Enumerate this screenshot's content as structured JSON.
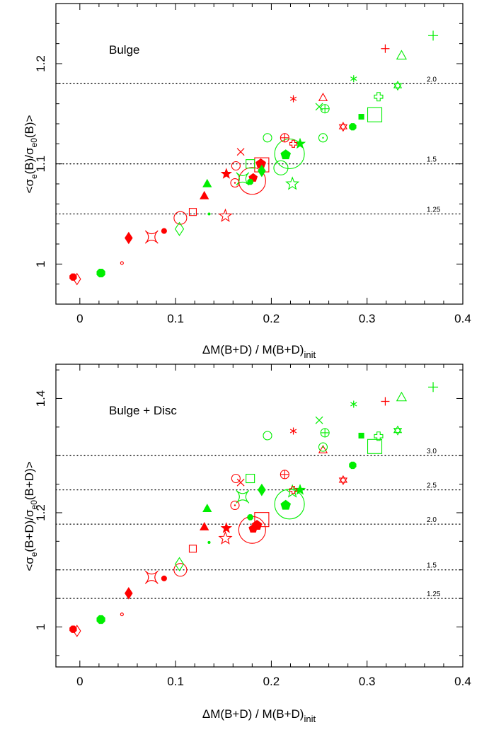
{
  "colors": {
    "red": "#ff0000",
    "green": "#00ee00",
    "axis": "#000000"
  },
  "chart_data": [
    {
      "type": "scatter",
      "panel": "top",
      "annotation": "Bulge",
      "xlabel_main": "ΔM(B+D) / M(B+D)",
      "xlabel_sub": "init",
      "ylabel_main": "<σ",
      "ylabel_sub1": "e",
      "ylabel_mid": "(B)/σ",
      "ylabel_sub2": "e0",
      "ylabel_end": "(B)>",
      "xlim": [
        -0.025,
        0.4
      ],
      "ylim": [
        0.96,
        1.26
      ],
      "xticks": [
        0,
        0.1,
        0.2,
        0.3,
        0.4
      ],
      "xtick_labels": [
        "0",
        "0.1",
        "0.2",
        "0.3",
        "0.4"
      ],
      "yticks": [
        1,
        1.1,
        1.2
      ],
      "ytick_labels": [
        "1",
        "1.1",
        "1.2"
      ],
      "reference_lines": [
        {
          "y": 1.18,
          "label": "2.0"
        },
        {
          "y": 1.1,
          "label": "1.5"
        },
        {
          "y": 1.05,
          "label": "1.25"
        }
      ],
      "points": [
        {
          "x": -0.007,
          "y": 0.987,
          "color": "red",
          "marker": "octagon",
          "filled": true,
          "size": 5
        },
        {
          "x": -0.003,
          "y": 0.985,
          "color": "red",
          "marker": "diamond",
          "filled": false,
          "size": 6
        },
        {
          "x": 0.022,
          "y": 0.991,
          "color": "green",
          "marker": "octagon",
          "filled": true,
          "size": 6
        },
        {
          "x": 0.044,
          "y": 1.001,
          "color": "red",
          "marker": "circle",
          "filled": false,
          "size": 2
        },
        {
          "x": 0.051,
          "y": 1.026,
          "color": "red",
          "marker": "diamond",
          "filled": true,
          "size": 6
        },
        {
          "x": 0.075,
          "y": 1.027,
          "color": "red",
          "marker": "astroid",
          "filled": false,
          "size": 9
        },
        {
          "x": 0.088,
          "y": 1.033,
          "color": "red",
          "marker": "circle",
          "filled": true,
          "size": 3.5
        },
        {
          "x": 0.104,
          "y": 1.035,
          "color": "green",
          "marker": "diamond",
          "filled": false,
          "size": 7
        },
        {
          "x": 0.105,
          "y": 1.046,
          "color": "red",
          "marker": "circle",
          "filled": false,
          "size": 9
        },
        {
          "x": 0.118,
          "y": 1.052,
          "color": "red",
          "marker": "square",
          "filled": false,
          "size": 5
        },
        {
          "x": 0.13,
          "y": 1.068,
          "color": "red",
          "marker": "triangle",
          "filled": true,
          "size": 6
        },
        {
          "x": 0.133,
          "y": 1.08,
          "color": "green",
          "marker": "triangle",
          "filled": true,
          "size": 6
        },
        {
          "x": 0.135,
          "y": 1.05,
          "color": "green",
          "marker": "circle",
          "filled": true,
          "size": 1.5
        },
        {
          "x": 0.152,
          "y": 1.048,
          "color": "red",
          "marker": "star",
          "filled": false,
          "size": 9
        },
        {
          "x": 0.153,
          "y": 1.09,
          "color": "red",
          "marker": "star",
          "filled": true,
          "size": 7
        },
        {
          "x": 0.162,
          "y": 1.081,
          "color": "red",
          "marker": "circle-dot",
          "filled": false,
          "size": 6
        },
        {
          "x": 0.163,
          "y": 1.098,
          "color": "red",
          "marker": "circle",
          "filled": false,
          "size": 6
        },
        {
          "x": 0.168,
          "y": 1.112,
          "color": "red",
          "marker": "cross",
          "filled": false,
          "size": 5
        },
        {
          "x": 0.17,
          "y": 1.085,
          "color": "green",
          "marker": "astroid",
          "filled": false,
          "size": 9
        },
        {
          "x": 0.178,
          "y": 1.1,
          "color": "green",
          "marker": "square",
          "filled": false,
          "size": 6
        },
        {
          "x": 0.178,
          "y": 1.082,
          "color": "green",
          "marker": "octagon",
          "filled": true,
          "size": 4
        },
        {
          "x": 0.18,
          "y": 1.083,
          "color": "red",
          "marker": "circle",
          "filled": false,
          "size": 19
        },
        {
          "x": 0.181,
          "y": 1.086,
          "color": "red",
          "marker": "pentagon",
          "filled": true,
          "size": 6
        },
        {
          "x": 0.189,
          "y": 1.1,
          "color": "red",
          "marker": "pentagon",
          "filled": true,
          "size": 7
        },
        {
          "x": 0.19,
          "y": 1.093,
          "color": "green",
          "marker": "diamond",
          "filled": true,
          "size": 6
        },
        {
          "x": 0.19,
          "y": 1.099,
          "color": "red",
          "marker": "square",
          "filled": false,
          "size": 10
        },
        {
          "x": 0.196,
          "y": 1.126,
          "color": "green",
          "marker": "circle",
          "filled": false,
          "size": 6
        },
        {
          "x": 0.21,
          "y": 1.096,
          "color": "green",
          "marker": "circle",
          "filled": false,
          "size": 10
        },
        {
          "x": 0.214,
          "y": 1.126,
          "color": "red",
          "marker": "circle-plus",
          "filled": false,
          "size": 6
        },
        {
          "x": 0.215,
          "y": 1.109,
          "color": "green",
          "marker": "pentagon",
          "filled": true,
          "size": 7
        },
        {
          "x": 0.219,
          "y": 1.11,
          "color": "green",
          "marker": "circle",
          "filled": false,
          "size": 21
        },
        {
          "x": 0.222,
          "y": 1.08,
          "color": "green",
          "marker": "star",
          "filled": false,
          "size": 9
        },
        {
          "x": 0.223,
          "y": 1.165,
          "color": "red",
          "marker": "asterisk",
          "filled": false,
          "size": 5
        },
        {
          "x": 0.223,
          "y": 1.12,
          "color": "red",
          "marker": "cross-pattee",
          "filled": false,
          "size": 5
        },
        {
          "x": 0.23,
          "y": 1.12,
          "color": "green",
          "marker": "star",
          "filled": true,
          "size": 7
        },
        {
          "x": 0.25,
          "y": 1.157,
          "color": "green",
          "marker": "cross",
          "filled": false,
          "size": 5
        },
        {
          "x": 0.254,
          "y": 1.166,
          "color": "red",
          "marker": "triangle",
          "filled": false,
          "size": 6
        },
        {
          "x": 0.254,
          "y": 1.126,
          "color": "green",
          "marker": "circle-dot",
          "filled": false,
          "size": 6
        },
        {
          "x": 0.256,
          "y": 1.155,
          "color": "green",
          "marker": "circle-plus",
          "filled": false,
          "size": 6
        },
        {
          "x": 0.275,
          "y": 1.137,
          "color": "red",
          "marker": "hexagram",
          "filled": false,
          "size": 6
        },
        {
          "x": 0.285,
          "y": 1.137,
          "color": "green",
          "marker": "octagon",
          "filled": true,
          "size": 5
        },
        {
          "x": 0.286,
          "y": 1.185,
          "color": "green",
          "marker": "asterisk",
          "filled": false,
          "size": 5
        },
        {
          "x": 0.294,
          "y": 1.147,
          "color": "green",
          "marker": "square",
          "filled": true,
          "size": 3.5
        },
        {
          "x": 0.308,
          "y": 1.149,
          "color": "green",
          "marker": "square",
          "filled": false,
          "size": 10
        },
        {
          "x": 0.312,
          "y": 1.167,
          "color": "green",
          "marker": "cross-pattee",
          "filled": false,
          "size": 6
        },
        {
          "x": 0.319,
          "y": 1.215,
          "color": "red",
          "marker": "plus",
          "filled": false,
          "size": 6
        },
        {
          "x": 0.332,
          "y": 1.178,
          "color": "green",
          "marker": "hexagram",
          "filled": false,
          "size": 6
        },
        {
          "x": 0.336,
          "y": 1.208,
          "color": "green",
          "marker": "triangle",
          "filled": false,
          "size": 7
        },
        {
          "x": 0.369,
          "y": 1.228,
          "color": "green",
          "marker": "plus",
          "filled": false,
          "size": 7
        }
      ]
    },
    {
      "type": "scatter",
      "panel": "bottom",
      "annotation": "Bulge + Disc",
      "xlabel_main": "ΔM(B+D) / M(B+D)",
      "xlabel_sub": "init",
      "ylabel_main": "<σ",
      "ylabel_sub1": "e",
      "ylabel_mid": "(B+D)/σ",
      "ylabel_sub2": "e0",
      "ylabel_end": "(B+D)>",
      "xlim": [
        -0.025,
        0.4
      ],
      "ylim": [
        0.93,
        1.46
      ],
      "xticks": [
        0,
        0.1,
        0.2,
        0.3,
        0.4
      ],
      "xtick_labels": [
        "0",
        "0.1",
        "0.2",
        "0.3",
        "0.4"
      ],
      "yticks": [
        1,
        1.2,
        1.4
      ],
      "ytick_labels": [
        "1",
        "1.2",
        "1.4"
      ],
      "reference_lines": [
        {
          "y": 1.3,
          "label": "3.0"
        },
        {
          "y": 1.24,
          "label": "2.5"
        },
        {
          "y": 1.18,
          "label": "2.0"
        },
        {
          "y": 1.1,
          "label": "1.5"
        },
        {
          "y": 1.05,
          "label": "1.25"
        }
      ],
      "points": [
        {
          "x": -0.007,
          "y": 0.996,
          "color": "red",
          "marker": "octagon",
          "filled": true,
          "size": 5
        },
        {
          "x": -0.003,
          "y": 0.993,
          "color": "red",
          "marker": "diamond",
          "filled": false,
          "size": 6
        },
        {
          "x": 0.022,
          "y": 1.013,
          "color": "green",
          "marker": "octagon",
          "filled": true,
          "size": 6
        },
        {
          "x": 0.044,
          "y": 1.022,
          "color": "red",
          "marker": "circle",
          "filled": false,
          "size": 2
        },
        {
          "x": 0.051,
          "y": 1.059,
          "color": "red",
          "marker": "diamond",
          "filled": true,
          "size": 6
        },
        {
          "x": 0.075,
          "y": 1.087,
          "color": "red",
          "marker": "astroid",
          "filled": false,
          "size": 9
        },
        {
          "x": 0.088,
          "y": 1.085,
          "color": "red",
          "marker": "circle",
          "filled": true,
          "size": 3.5
        },
        {
          "x": 0.104,
          "y": 1.11,
          "color": "green",
          "marker": "diamond",
          "filled": false,
          "size": 7
        },
        {
          "x": 0.105,
          "y": 1.1,
          "color": "red",
          "marker": "circle",
          "filled": false,
          "size": 9
        },
        {
          "x": 0.118,
          "y": 1.137,
          "color": "red",
          "marker": "square",
          "filled": false,
          "size": 5
        },
        {
          "x": 0.13,
          "y": 1.175,
          "color": "red",
          "marker": "triangle",
          "filled": true,
          "size": 6
        },
        {
          "x": 0.133,
          "y": 1.207,
          "color": "green",
          "marker": "triangle",
          "filled": true,
          "size": 6
        },
        {
          "x": 0.135,
          "y": 1.148,
          "color": "green",
          "marker": "circle",
          "filled": true,
          "size": 1.5
        },
        {
          "x": 0.152,
          "y": 1.155,
          "color": "red",
          "marker": "star",
          "filled": false,
          "size": 9
        },
        {
          "x": 0.153,
          "y": 1.173,
          "color": "red",
          "marker": "star",
          "filled": true,
          "size": 7
        },
        {
          "x": 0.162,
          "y": 1.213,
          "color": "red",
          "marker": "circle-dot",
          "filled": false,
          "size": 6
        },
        {
          "x": 0.163,
          "y": 1.26,
          "color": "red",
          "marker": "circle",
          "filled": false,
          "size": 6
        },
        {
          "x": 0.168,
          "y": 1.253,
          "color": "red",
          "marker": "cross",
          "filled": false,
          "size": 5
        },
        {
          "x": 0.17,
          "y": 1.228,
          "color": "green",
          "marker": "astroid",
          "filled": false,
          "size": 9
        },
        {
          "x": 0.178,
          "y": 1.26,
          "color": "green",
          "marker": "square",
          "filled": false,
          "size": 6
        },
        {
          "x": 0.178,
          "y": 1.192,
          "color": "green",
          "marker": "octagon",
          "filled": true,
          "size": 4
        },
        {
          "x": 0.18,
          "y": 1.17,
          "color": "red",
          "marker": "circle",
          "filled": false,
          "size": 19
        },
        {
          "x": 0.181,
          "y": 1.172,
          "color": "red",
          "marker": "pentagon",
          "filled": true,
          "size": 6
        },
        {
          "x": 0.185,
          "y": 1.178,
          "color": "red",
          "marker": "pentagon",
          "filled": true,
          "size": 7
        },
        {
          "x": 0.19,
          "y": 1.24,
          "color": "green",
          "marker": "diamond",
          "filled": true,
          "size": 6
        },
        {
          "x": 0.19,
          "y": 1.188,
          "color": "red",
          "marker": "square",
          "filled": false,
          "size": 10
        },
        {
          "x": 0.196,
          "y": 1.335,
          "color": "green",
          "marker": "circle",
          "filled": false,
          "size": 6
        },
        {
          "x": 0.214,
          "y": 1.267,
          "color": "red",
          "marker": "circle-plus",
          "filled": false,
          "size": 6
        },
        {
          "x": 0.215,
          "y": 1.213,
          "color": "green",
          "marker": "pentagon",
          "filled": true,
          "size": 7
        },
        {
          "x": 0.219,
          "y": 1.215,
          "color": "green",
          "marker": "circle",
          "filled": false,
          "size": 21
        },
        {
          "x": 0.222,
          "y": 1.237,
          "color": "green",
          "marker": "star",
          "filled": false,
          "size": 9
        },
        {
          "x": 0.223,
          "y": 1.343,
          "color": "red",
          "marker": "asterisk",
          "filled": false,
          "size": 5
        },
        {
          "x": 0.223,
          "y": 1.24,
          "color": "red",
          "marker": "cross-pattee",
          "filled": false,
          "size": 5
        },
        {
          "x": 0.23,
          "y": 1.24,
          "color": "green",
          "marker": "star",
          "filled": true,
          "size": 7
        },
        {
          "x": 0.25,
          "y": 1.362,
          "color": "green",
          "marker": "cross",
          "filled": false,
          "size": 5
        },
        {
          "x": 0.254,
          "y": 1.31,
          "color": "red",
          "marker": "triangle",
          "filled": false,
          "size": 6
        },
        {
          "x": 0.254,
          "y": 1.315,
          "color": "green",
          "marker": "circle-dot",
          "filled": false,
          "size": 6
        },
        {
          "x": 0.256,
          "y": 1.34,
          "color": "green",
          "marker": "circle-plus",
          "filled": false,
          "size": 6
        },
        {
          "x": 0.275,
          "y": 1.257,
          "color": "red",
          "marker": "hexagram",
          "filled": false,
          "size": 6
        },
        {
          "x": 0.285,
          "y": 1.283,
          "color": "green",
          "marker": "octagon",
          "filled": true,
          "size": 5
        },
        {
          "x": 0.286,
          "y": 1.39,
          "color": "green",
          "marker": "asterisk",
          "filled": false,
          "size": 5
        },
        {
          "x": 0.294,
          "y": 1.335,
          "color": "green",
          "marker": "square",
          "filled": true,
          "size": 3.5
        },
        {
          "x": 0.308,
          "y": 1.316,
          "color": "green",
          "marker": "square",
          "filled": false,
          "size": 10
        },
        {
          "x": 0.312,
          "y": 1.334,
          "color": "green",
          "marker": "cross-pattee",
          "filled": false,
          "size": 6
        },
        {
          "x": 0.319,
          "y": 1.395,
          "color": "red",
          "marker": "plus",
          "filled": false,
          "size": 6
        },
        {
          "x": 0.332,
          "y": 1.344,
          "color": "green",
          "marker": "hexagram",
          "filled": false,
          "size": 6
        },
        {
          "x": 0.336,
          "y": 1.402,
          "color": "green",
          "marker": "triangle",
          "filled": false,
          "size": 7
        },
        {
          "x": 0.369,
          "y": 1.42,
          "color": "green",
          "marker": "plus",
          "filled": false,
          "size": 7
        }
      ]
    }
  ]
}
